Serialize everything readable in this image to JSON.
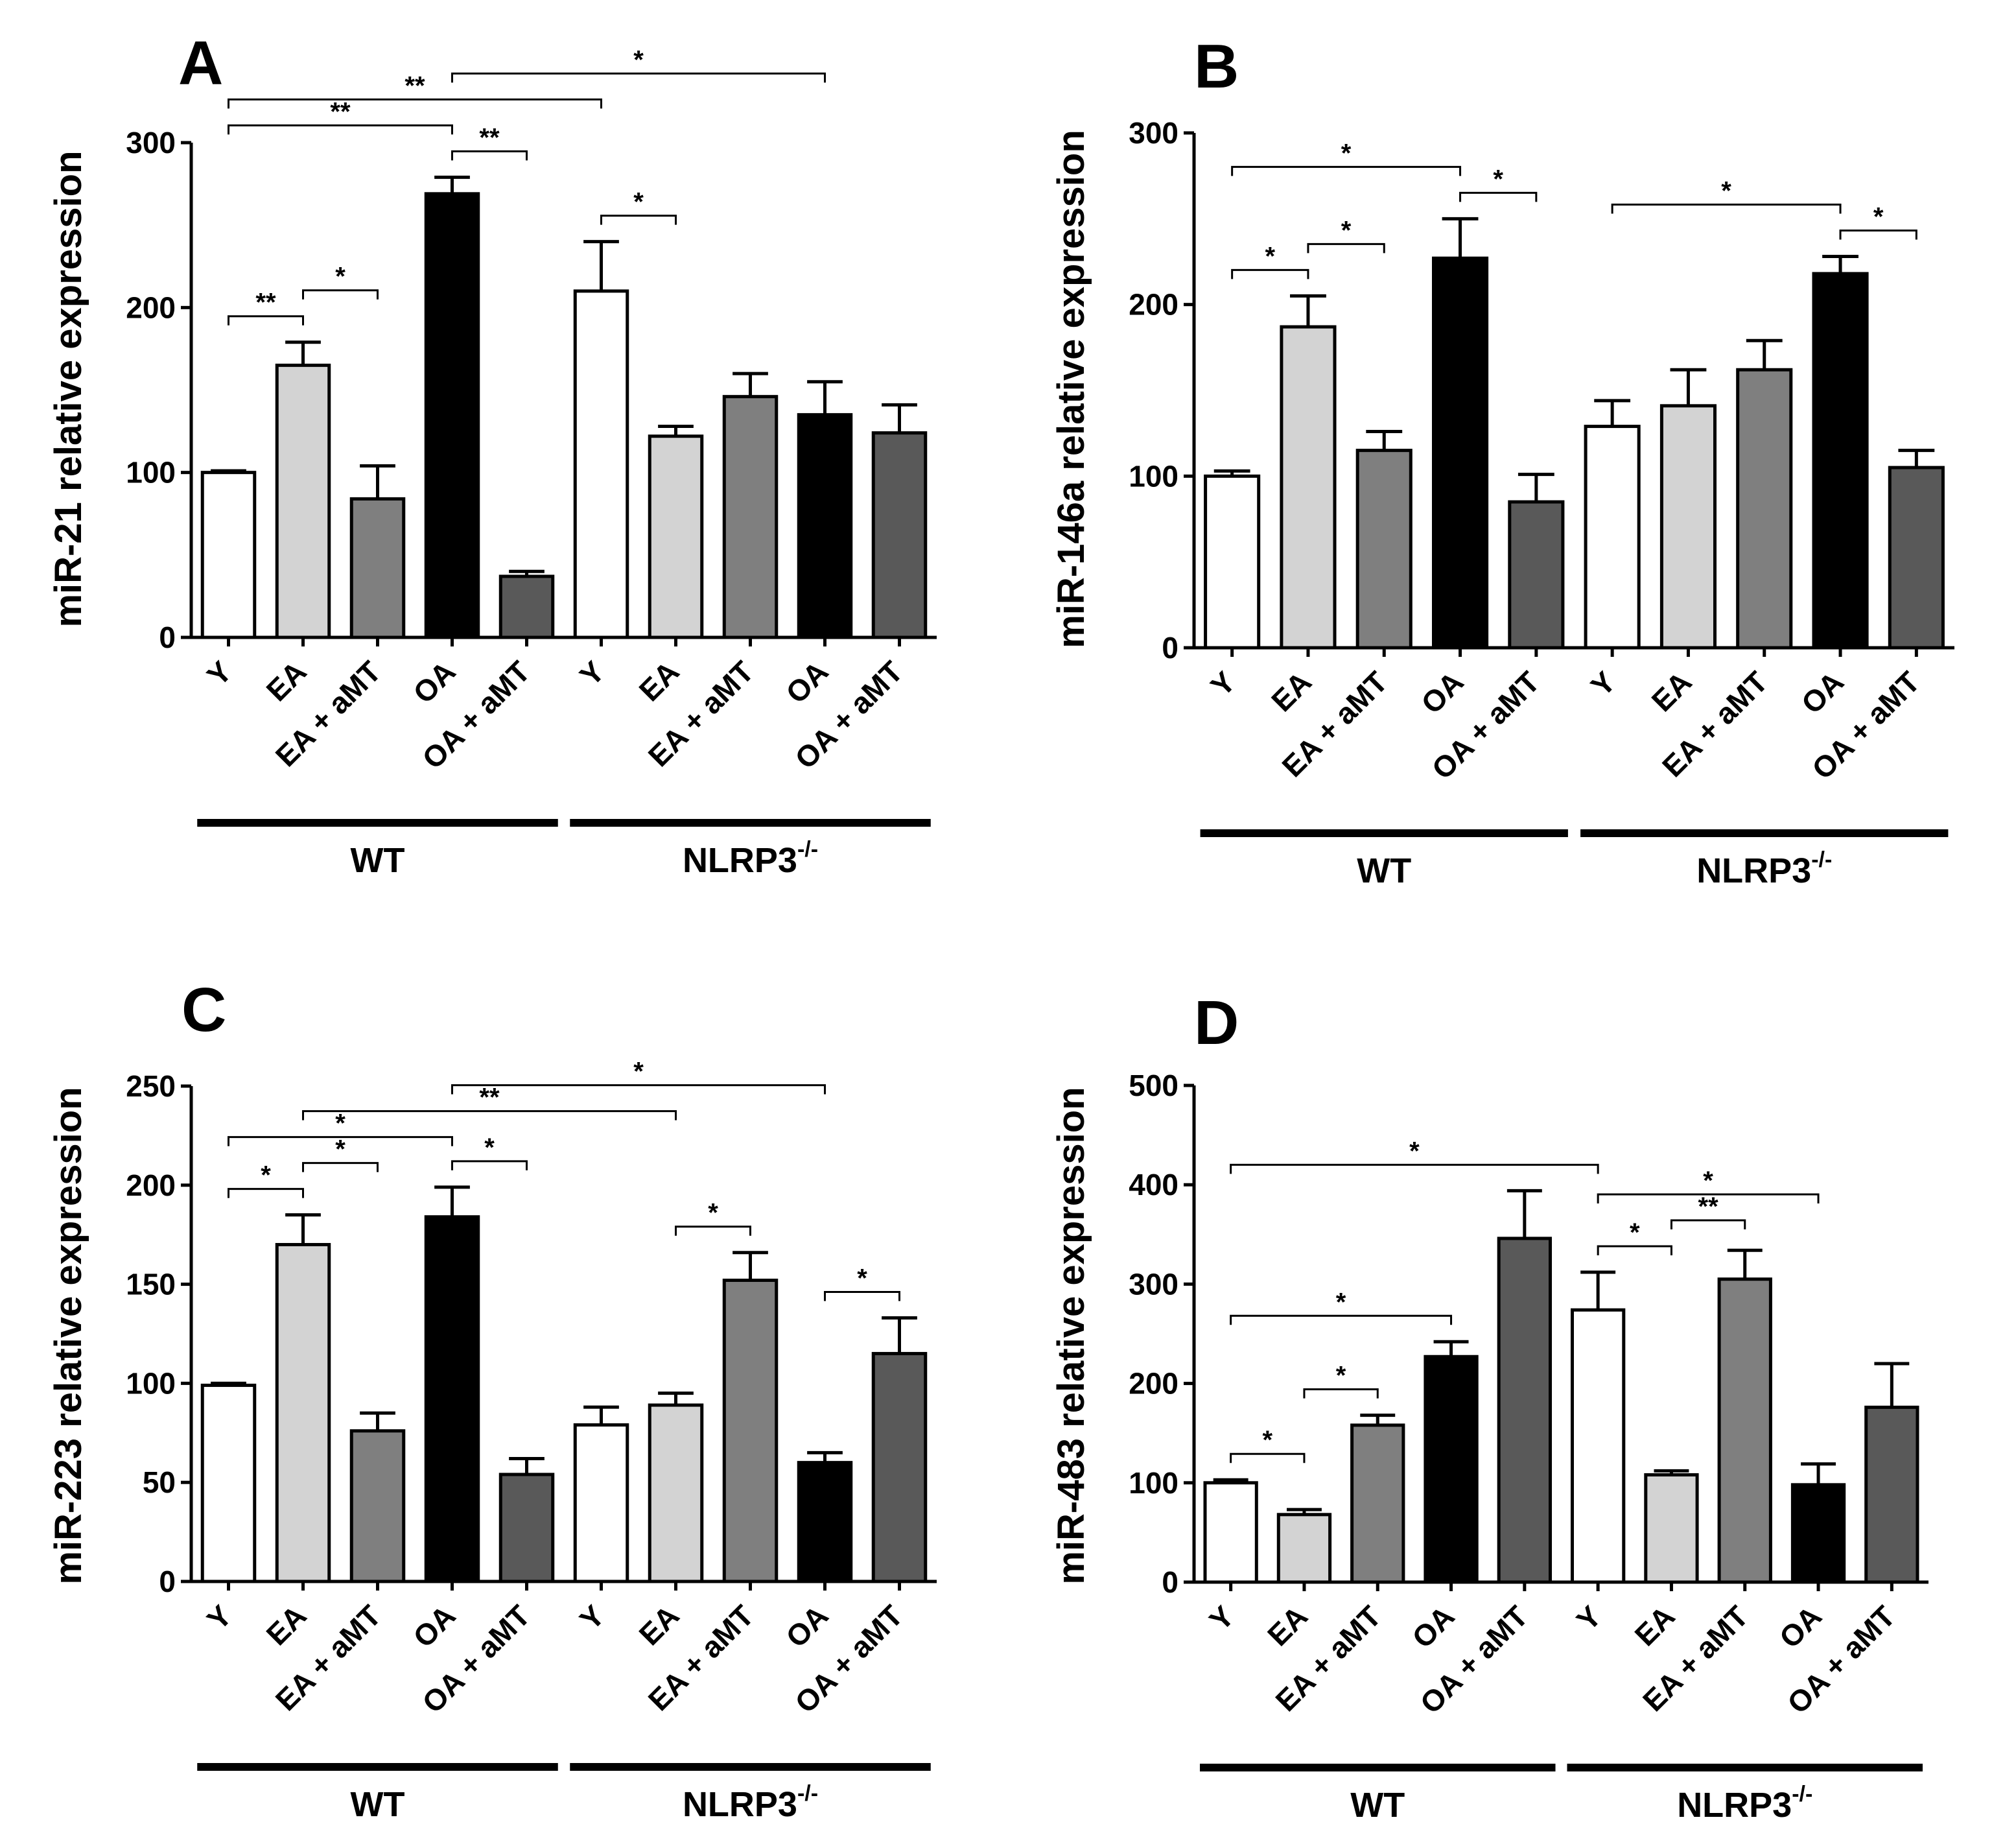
{
  "chart_data": [
    {
      "type": "bar",
      "panel_label": "A",
      "ylabel": "miR-21 relative expression",
      "ylim": [
        0,
        300
      ],
      "yticks": [
        "0",
        "100",
        "200",
        "300"
      ],
      "categories": [
        "Y",
        "EA",
        "EA + aMT",
        "OA",
        "OA + aMT",
        "Y",
        "EA",
        "EA + aMT",
        "OA",
        "OA + aMT"
      ],
      "groups": [
        {
          "label": "WT",
          "sup": ""
        },
        {
          "label": "NLRP3",
          "sup": "-/-"
        }
      ],
      "values": [
        100,
        165,
        84,
        269,
        37,
        210,
        122,
        146,
        135,
        124
      ],
      "errors": [
        1,
        14,
        20,
        10,
        3,
        30,
        6,
        14,
        20,
        17
      ],
      "significance": [
        {
          "from": 0,
          "to": 1,
          "label": "**"
        },
        {
          "from": 1,
          "to": 2,
          "label": "*"
        },
        {
          "from": 0,
          "to": 3,
          "label": "**"
        },
        {
          "from": 3,
          "to": 4,
          "label": "**"
        },
        {
          "from": 0,
          "to": 5,
          "label": "**"
        },
        {
          "from": 3,
          "to": 8,
          "label": "*"
        },
        {
          "from": 5,
          "to": 6,
          "label": "*"
        }
      ]
    },
    {
      "type": "bar",
      "panel_label": "B",
      "ylabel": "miR-146a relative expression",
      "ylim": [
        0,
        300
      ],
      "yticks": [
        "0",
        "100",
        "200",
        "300"
      ],
      "categories": [
        "Y",
        "EA",
        "EA + aMT",
        "OA",
        "OA + aMT",
        "Y",
        "EA",
        "EA + aMT",
        "OA",
        "OA + aMT"
      ],
      "groups": [
        {
          "label": "WT",
          "sup": ""
        },
        {
          "label": "NLRP3",
          "sup": "-/-"
        }
      ],
      "values": [
        100,
        187,
        115,
        227,
        85,
        129,
        141,
        162,
        218,
        105
      ],
      "errors": [
        3,
        18,
        11,
        23,
        16,
        15,
        21,
        17,
        10,
        10
      ],
      "significance": [
        {
          "from": 0,
          "to": 1,
          "label": "*"
        },
        {
          "from": 1,
          "to": 2,
          "label": "*"
        },
        {
          "from": 0,
          "to": 3,
          "label": "*"
        },
        {
          "from": 3,
          "to": 4,
          "label": "*"
        },
        {
          "from": 5,
          "to": 8,
          "label": "*"
        },
        {
          "from": 8,
          "to": 9,
          "label": "*"
        }
      ]
    },
    {
      "type": "bar",
      "panel_label": "C",
      "ylabel": "miR-223 relative expression",
      "ylim": [
        0,
        250
      ],
      "yticks": [
        "0",
        "50",
        "100",
        "150",
        "200",
        "250"
      ],
      "categories": [
        "Y",
        "EA",
        "EA + aMT",
        "OA",
        "OA + aMT",
        "Y",
        "EA",
        "EA + aMT",
        "OA",
        "OA + aMT"
      ],
      "groups": [
        {
          "label": "WT",
          "sup": ""
        },
        {
          "label": "NLRP3",
          "sup": "-/-"
        }
      ],
      "values": [
        99,
        170,
        76,
        184,
        54,
        79,
        89,
        152,
        60,
        115
      ],
      "errors": [
        1,
        15,
        9,
        15,
        8,
        9,
        6,
        14,
        5,
        18
      ],
      "significance": [
        {
          "from": 0,
          "to": 1,
          "label": "*"
        },
        {
          "from": 1,
          "to": 2,
          "label": "*"
        },
        {
          "from": 0,
          "to": 3,
          "label": "*"
        },
        {
          "from": 3,
          "to": 4,
          "label": "*"
        },
        {
          "from": 1,
          "to": 6,
          "label": "**"
        },
        {
          "from": 3,
          "to": 8,
          "label": "*"
        },
        {
          "from": 6,
          "to": 7,
          "label": "*"
        },
        {
          "from": 8,
          "to": 9,
          "label": "*"
        }
      ]
    },
    {
      "type": "bar",
      "panel_label": "D",
      "ylabel": "miR-483 relative expression",
      "ylim": [
        0,
        500
      ],
      "yticks": [
        "0",
        "100",
        "200",
        "300",
        "400",
        "500"
      ],
      "categories": [
        "Y",
        "EA",
        "EA + aMT",
        "OA",
        "OA + aMT",
        "Y",
        "EA",
        "EA + aMT",
        "OA",
        "OA + aMT"
      ],
      "groups": [
        {
          "label": "WT",
          "sup": ""
        },
        {
          "label": "NLRP3",
          "sup": "-/-"
        }
      ],
      "values": [
        100,
        68,
        158,
        227,
        346,
        274,
        108,
        305,
        98,
        176
      ],
      "errors": [
        3,
        5,
        10,
        15,
        48,
        38,
        4,
        29,
        21,
        44
      ],
      "significance": [
        {
          "from": 0,
          "to": 1,
          "label": "*"
        },
        {
          "from": 1,
          "to": 2,
          "label": "*"
        },
        {
          "from": 0,
          "to": 3,
          "label": "*"
        },
        {
          "from": 0,
          "to": 5,
          "label": "*"
        },
        {
          "from": 5,
          "to": 6,
          "label": "*"
        },
        {
          "from": 6,
          "to": 7,
          "label": "**"
        },
        {
          "from": 5,
          "to": 8,
          "label": "*"
        }
      ]
    }
  ],
  "style": {
    "bar_fills": [
      "#ffffff",
      "#d3d3d3",
      "#7f7f7f",
      "#000000",
      "#595959",
      "#ffffff",
      "#d3d3d3",
      "#7f7f7f",
      "#000000",
      "#595959"
    ],
    "stroke_color": "#000000"
  }
}
